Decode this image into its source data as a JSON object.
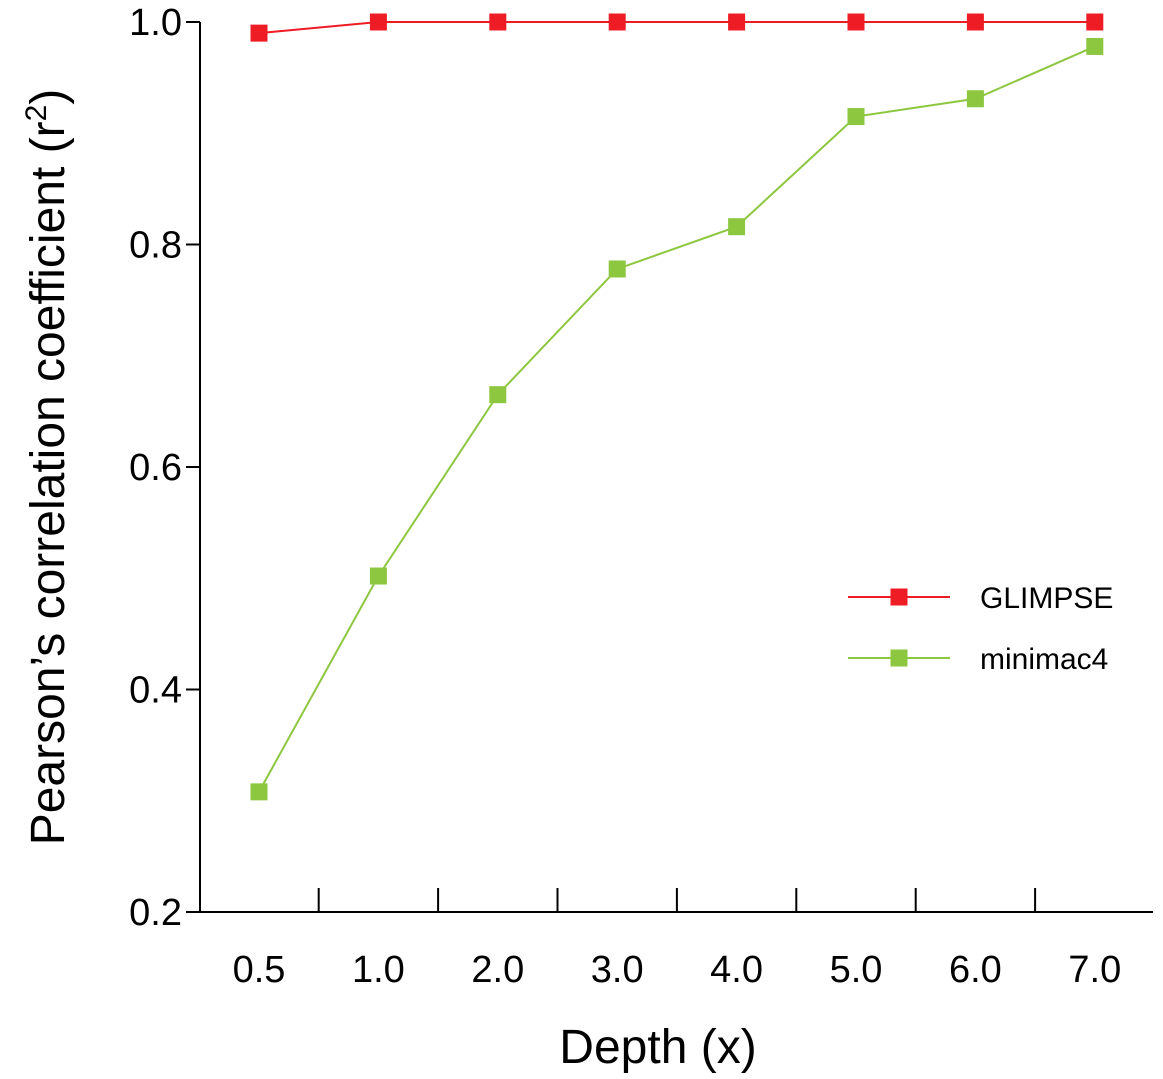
{
  "chart_data": {
    "type": "line",
    "categories": [
      "0.5",
      "1.0",
      "2.0",
      "3.0",
      "4.0",
      "5.0",
      "6.0",
      "7.0"
    ],
    "series": [
      {
        "name": "GLIMPSE",
        "color": "#ee1c25",
        "values": [
          0.99,
          1.0,
          1.0,
          1.0,
          1.0,
          1.0,
          1.0,
          1.0
        ]
      },
      {
        "name": "minimac4",
        "color": "#8dc63f",
        "values": [
          0.308,
          0.502,
          0.665,
          0.778,
          0.816,
          0.915,
          0.931,
          0.978
        ]
      }
    ],
    "xlabel": "Depth (x)",
    "ylabel": "Pearson’s correlation coefficient (r",
    "ylabel_superscript": "2",
    "ylabel_suffix": ")",
    "ylim": [
      0.2,
      1.0
    ],
    "yticks": [
      "0.2",
      "0.4",
      "0.6",
      "0.8",
      "1.0"
    ],
    "grid": false,
    "legend_position": "right"
  }
}
